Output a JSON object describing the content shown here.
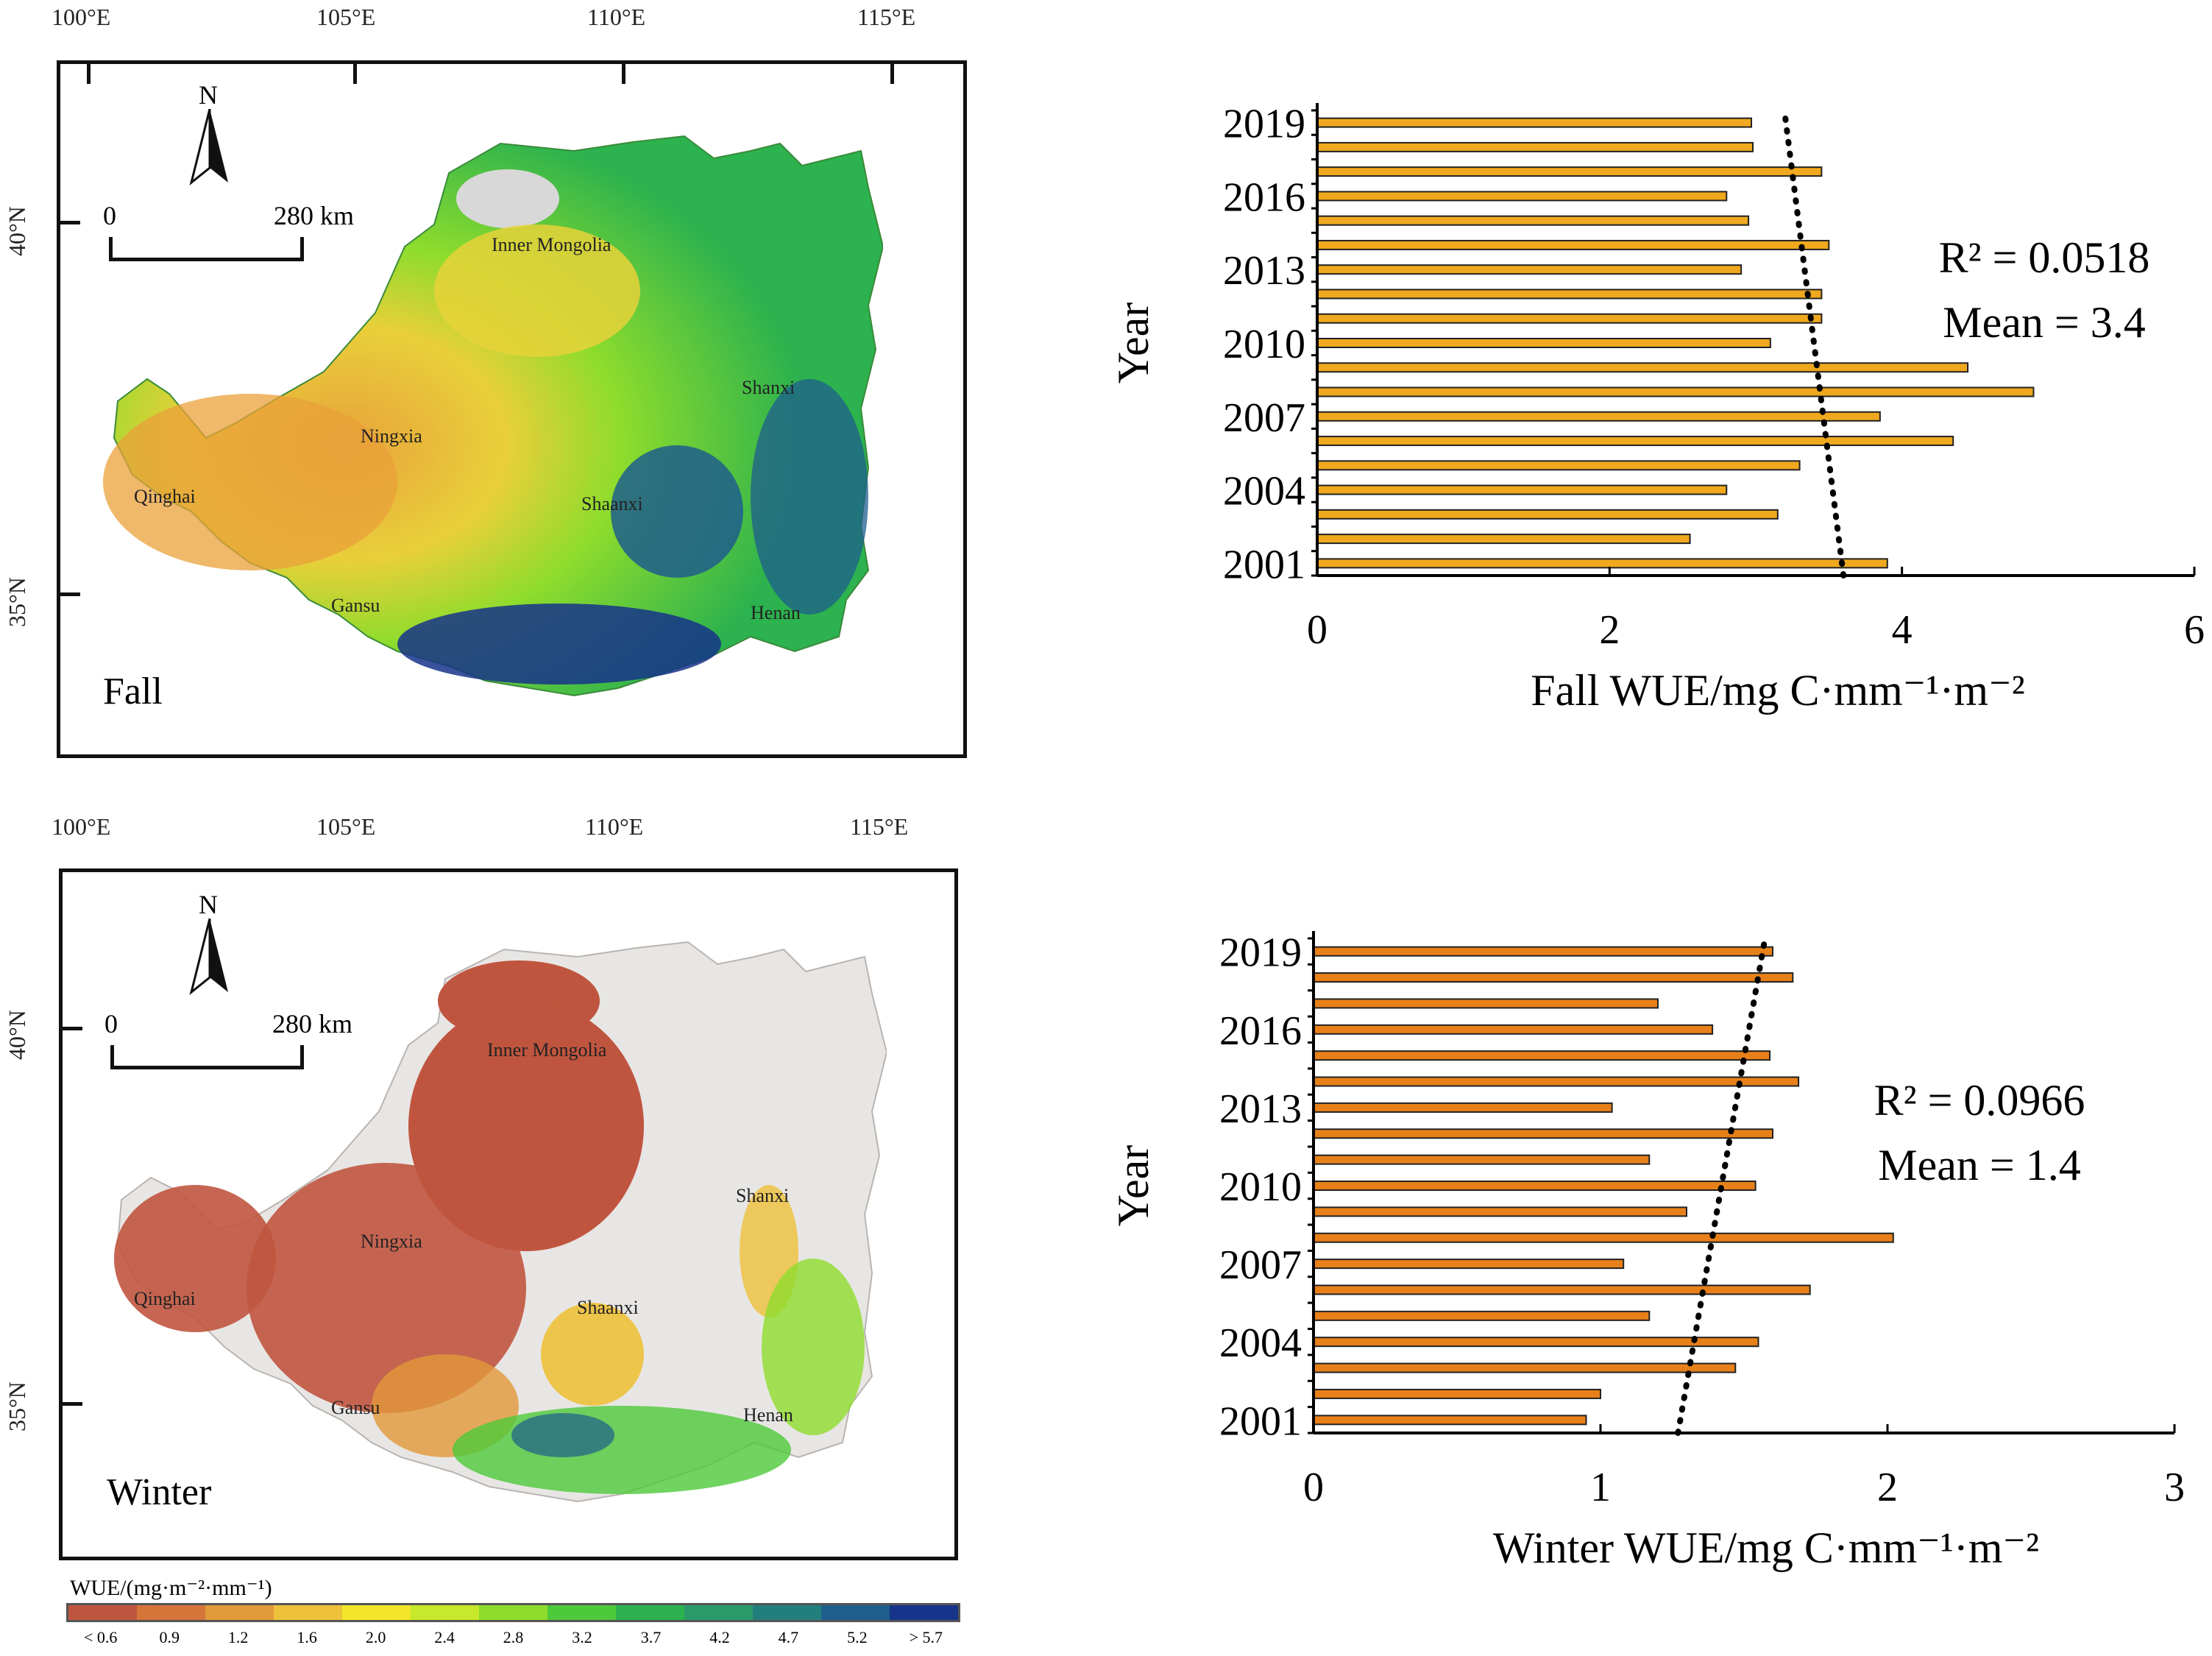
{
  "maps": {
    "fall": {
      "season": "Fall",
      "lon_labels": [
        "100°E",
        "105°E",
        "110°E",
        "115°E"
      ],
      "lat_labels": [
        "40°N",
        "35°N"
      ],
      "scale": {
        "zero": "0",
        "distance": "280 km"
      },
      "north": "N",
      "regions": [
        "Inner Mongolia",
        "Ningxia",
        "Qinghai",
        "Gansu",
        "Shaanxi",
        "Shanxi",
        "Henan"
      ]
    },
    "winter": {
      "season": "Winter",
      "lon_labels": [
        "100°E",
        "105°E",
        "110°E",
        "115°E"
      ],
      "lat_labels": [
        "40°N",
        "35°N"
      ],
      "scale": {
        "zero": "0",
        "distance": "280 km"
      },
      "north": "N",
      "regions": [
        "Inner Mongolia",
        "Ningxia",
        "Qinghai",
        "Gansu",
        "Shaanxi",
        "Shanxi",
        "Henan"
      ]
    }
  },
  "legend": {
    "title": "WUE/(mg·m⁻²·mm⁻¹)",
    "labels": [
      "< 0.6",
      "0.9",
      "1.2",
      "1.6",
      "2.0",
      "2.4",
      "2.8",
      "3.2",
      "3.7",
      "4.2",
      "4.7",
      "5.2",
      "> 5.7"
    ],
    "colors": [
      "#c0553f",
      "#d4753a",
      "#e2993a",
      "#eec13a",
      "#f3e52a",
      "#c8e82c",
      "#8edc2c",
      "#4ec93a",
      "#2cb24e",
      "#2a9a6a",
      "#237f7e",
      "#1e5e8c",
      "#16348a"
    ]
  },
  "chart_data": [
    {
      "type": "bar",
      "orientation": "horizontal",
      "title": "",
      "xlabel": "Fall  WUE/mg C·mm⁻¹·m⁻²",
      "ylabel": "Year",
      "xlim": [
        0,
        6
      ],
      "xticks": [
        "0",
        "2",
        "4",
        "6"
      ],
      "yticks": [
        "2019",
        "2016",
        "2013",
        "2010",
        "2007",
        "2004",
        "2001"
      ],
      "categories": [
        "2001",
        "2002",
        "2003",
        "2004",
        "2005",
        "2006",
        "2007",
        "2008",
        "2009",
        "2010",
        "2011",
        "2012",
        "2013",
        "2014",
        "2015",
        "2016",
        "2017",
        "2018",
        "2019"
      ],
      "values": [
        3.9,
        2.55,
        3.15,
        2.8,
        3.3,
        4.35,
        3.85,
        4.9,
        4.45,
        3.1,
        3.45,
        3.45,
        2.9,
        3.5,
        2.95,
        2.8,
        3.45,
        2.98,
        2.97
      ],
      "trend": {
        "start": 3.6,
        "end": 3.2,
        "style": "dotted"
      },
      "r2_label": "R² = 0.0518",
      "mean_label": "Mean = 3.4",
      "bar_color": "#f0a81e"
    },
    {
      "type": "bar",
      "orientation": "horizontal",
      "title": "",
      "xlabel": "Winter  WUE/mg C·mm⁻¹·m⁻²",
      "ylabel": "Year",
      "xlim": [
        0,
        3
      ],
      "xticks": [
        "0",
        "1",
        "2",
        "3"
      ],
      "yticks": [
        "2019",
        "2016",
        "2013",
        "2010",
        "2007",
        "2004",
        "2001"
      ],
      "categories": [
        "2001",
        "2002",
        "2003",
        "2004",
        "2005",
        "2006",
        "2007",
        "2008",
        "2009",
        "2010",
        "2011",
        "2012",
        "2013",
        "2014",
        "2015",
        "2016",
        "2017",
        "2018",
        "2019"
      ],
      "values": [
        0.95,
        1.0,
        1.47,
        1.55,
        1.17,
        1.73,
        1.08,
        2.02,
        1.3,
        1.54,
        1.17,
        1.6,
        1.04,
        1.69,
        1.59,
        1.39,
        1.2,
        1.67,
        1.6
      ],
      "trend": {
        "start": 1.27,
        "end": 1.57,
        "style": "dotted"
      },
      "r2_label": "R² = 0.0966",
      "mean_label": "Mean = 1.4",
      "bar_color": "#e8801a"
    }
  ]
}
